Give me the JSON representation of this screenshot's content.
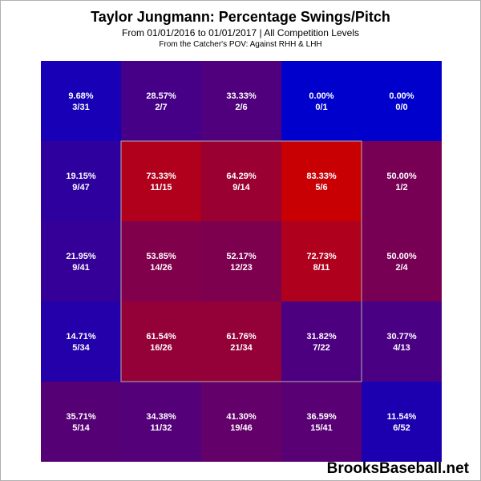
{
  "header": {
    "title": "Taylor Jungmann: Percentage Swings/Pitch",
    "subtitle": "From 01/01/2016 to 01/01/2017 | All Competition Levels",
    "note": "From the Catcher's POV:  Against RHH & LHH"
  },
  "brand": "BrooksBaseball.net",
  "chart_data": {
    "type": "heatmap",
    "title": "Taylor Jungmann: Percentage Swings/Pitch",
    "rows": 5,
    "cols": 5,
    "strike_zone": {
      "rows": [
        1,
        3
      ],
      "cols": [
        1,
        3
      ]
    },
    "colors": {
      "low": "#0000cc",
      "high": "#cc0000",
      "text": "#ffffff",
      "zone_border": "#b0b0b0"
    },
    "cells": [
      [
        {
          "pct": "9.68%",
          "ratio": "3/31",
          "value": 9.68
        },
        {
          "pct": "28.57%",
          "ratio": "2/7",
          "value": 28.57
        },
        {
          "pct": "33.33%",
          "ratio": "2/6",
          "value": 33.33
        },
        {
          "pct": "0.00%",
          "ratio": "0/1",
          "value": 0.0
        },
        {
          "pct": "0.00%",
          "ratio": "0/0",
          "value": 0.0
        }
      ],
      [
        {
          "pct": "19.15%",
          "ratio": "9/47",
          "value": 19.15
        },
        {
          "pct": "73.33%",
          "ratio": "11/15",
          "value": 73.33
        },
        {
          "pct": "64.29%",
          "ratio": "9/14",
          "value": 64.29
        },
        {
          "pct": "83.33%",
          "ratio": "5/6",
          "value": 83.33
        },
        {
          "pct": "50.00%",
          "ratio": "1/2",
          "value": 50.0
        }
      ],
      [
        {
          "pct": "21.95%",
          "ratio": "9/41",
          "value": 21.95
        },
        {
          "pct": "53.85%",
          "ratio": "14/26",
          "value": 53.85
        },
        {
          "pct": "52.17%",
          "ratio": "12/23",
          "value": 52.17
        },
        {
          "pct": "72.73%",
          "ratio": "8/11",
          "value": 72.73
        },
        {
          "pct": "50.00%",
          "ratio": "2/4",
          "value": 50.0
        }
      ],
      [
        {
          "pct": "14.71%",
          "ratio": "5/34",
          "value": 14.71
        },
        {
          "pct": "61.54%",
          "ratio": "16/26",
          "value": 61.54
        },
        {
          "pct": "61.76%",
          "ratio": "21/34",
          "value": 61.76
        },
        {
          "pct": "31.82%",
          "ratio": "7/22",
          "value": 31.82
        },
        {
          "pct": "30.77%",
          "ratio": "4/13",
          "value": 30.77
        }
      ],
      [
        {
          "pct": "35.71%",
          "ratio": "5/14",
          "value": 35.71
        },
        {
          "pct": "34.38%",
          "ratio": "11/32",
          "value": 34.38
        },
        {
          "pct": "41.30%",
          "ratio": "19/46",
          "value": 41.3
        },
        {
          "pct": "36.59%",
          "ratio": "15/41",
          "value": 36.59
        },
        {
          "pct": "11.54%",
          "ratio": "6/52",
          "value": 11.54
        }
      ]
    ]
  }
}
